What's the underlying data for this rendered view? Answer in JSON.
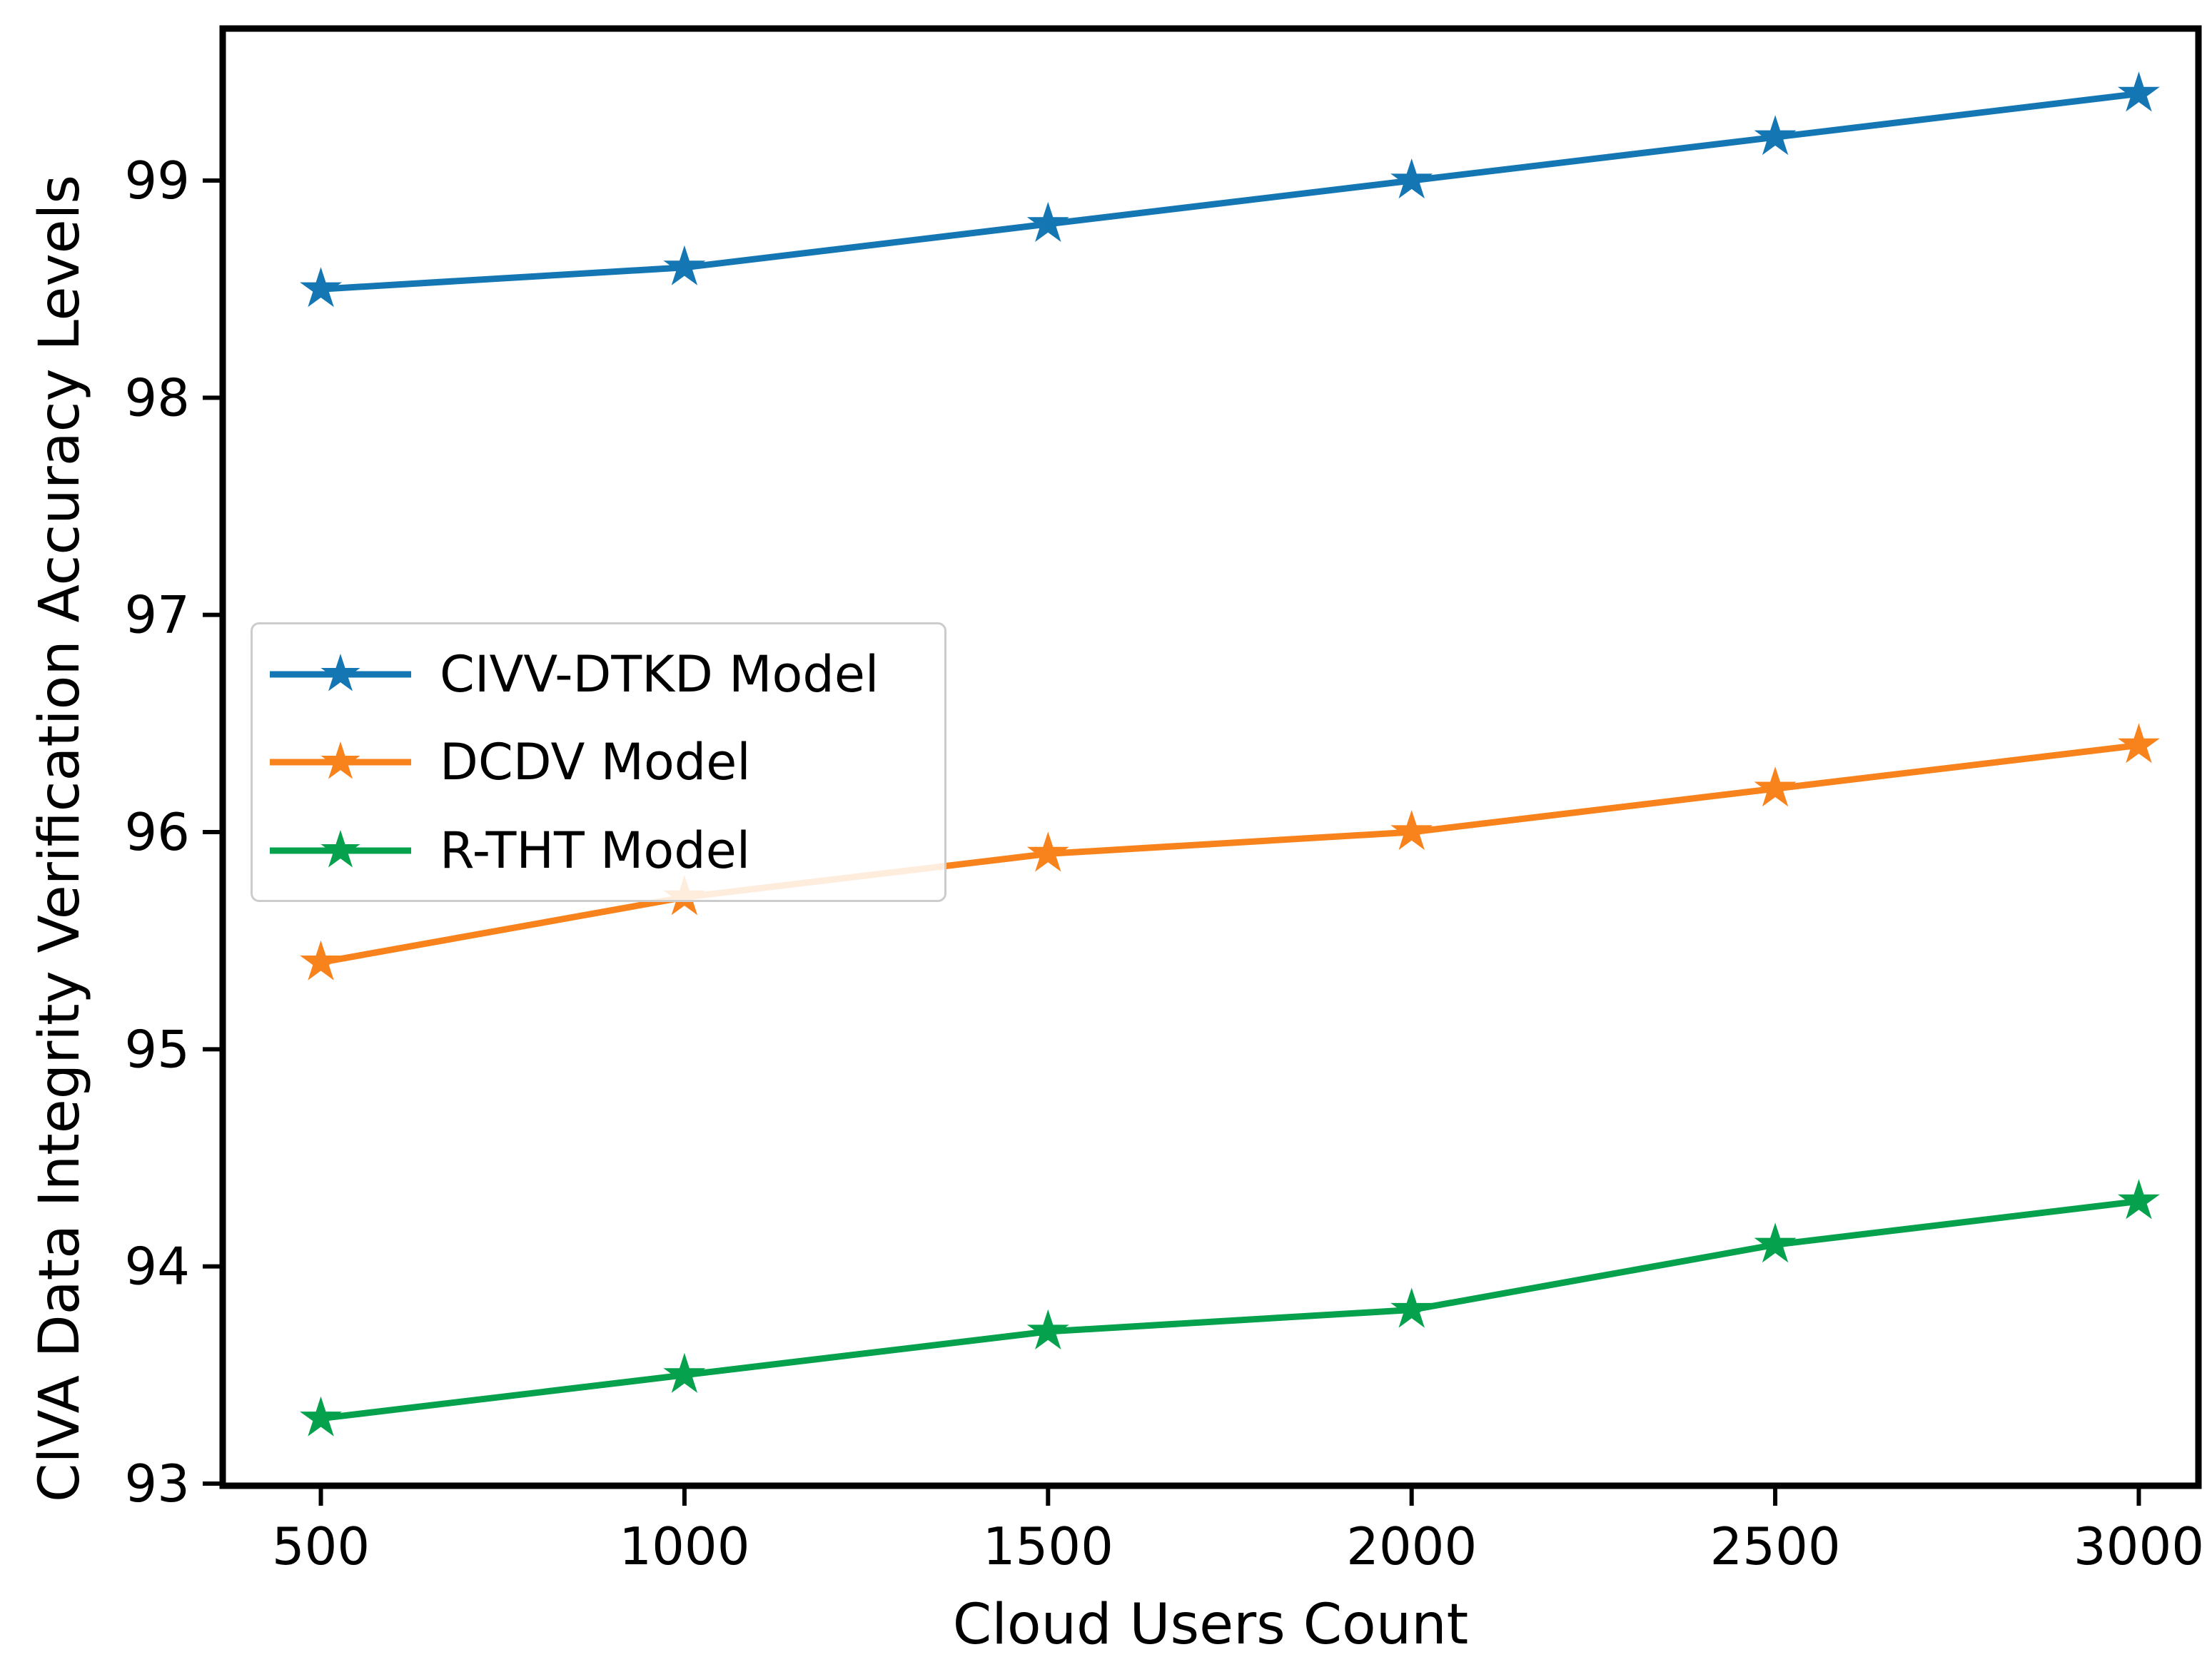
{
  "figure": {
    "title": ""
  },
  "chart_data": {
    "type": "line",
    "x": [
      500,
      1000,
      1500,
      2000,
      2500,
      3000
    ],
    "series": [
      {
        "name": "CIVV-DTKD Model",
        "color": "#1477b4",
        "values": [
          98.5,
          98.6,
          98.8,
          99.0,
          99.2,
          99.4
        ]
      },
      {
        "name": "DCDV Model",
        "color": "#f8821c",
        "values": [
          95.4,
          95.7,
          95.9,
          96.0,
          96.2,
          96.4
        ]
      },
      {
        "name": "R-THT Model",
        "color": "#05a14d",
        "values": [
          93.3,
          93.5,
          93.7,
          93.8,
          94.1,
          94.3
        ]
      }
    ],
    "title": "",
    "xlabel": "Cloud Users Count",
    "ylabel": "ClVA Data Integrity Verification Accuracy Levels",
    "x_ticks": [
      500,
      1000,
      1500,
      2000,
      2500,
      3000
    ],
    "y_ticks": [
      93,
      94,
      95,
      96,
      97,
      98,
      99
    ],
    "xlim": [
      365,
      3082
    ],
    "ylim": [
      92.99,
      99.7
    ],
    "grid": false,
    "marker": "star",
    "legend_position": "center-left",
    "axis_color": "#000000",
    "background_color": "#ffffff"
  }
}
